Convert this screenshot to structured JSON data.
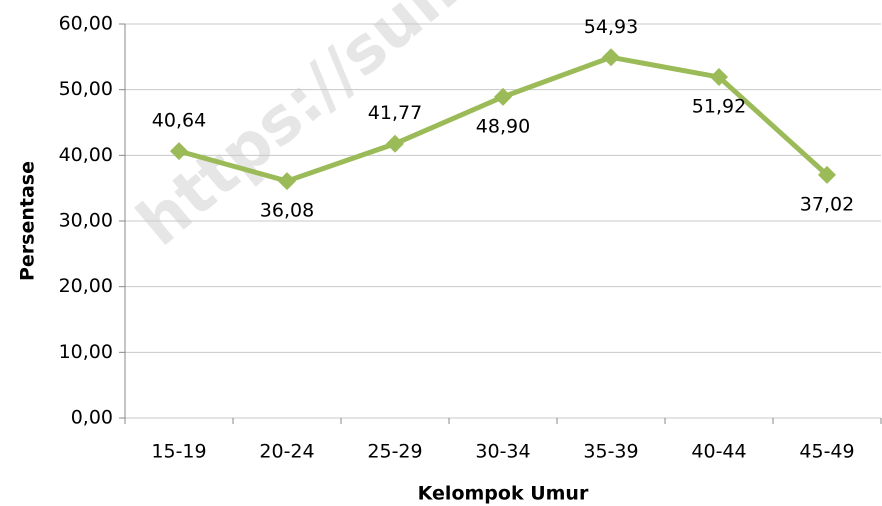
{
  "chart_data": {
    "type": "line",
    "watermark": "https://sumb",
    "x_label": "Kelompok Umur",
    "y_label": "Persentase",
    "categories": [
      "15-19",
      "20-24",
      "25-29",
      "30-34",
      "35-39",
      "40-44",
      "45-49"
    ],
    "series": [
      {
        "name": "Persentase",
        "color": "#9bbb59",
        "values": [
          40.64,
          36.08,
          41.77,
          48.9,
          54.93,
          51.92,
          37.02
        ],
        "value_labels": [
          "40,64",
          "36,08",
          "41,77",
          "48,90",
          "54,93",
          "51,92",
          "37,02"
        ]
      }
    ],
    "ylim": [
      0,
      60
    ],
    "yticks": [
      {
        "value": 0,
        "label": "0,00"
      },
      {
        "value": 10,
        "label": "10,00"
      },
      {
        "value": 20,
        "label": "20,00"
      },
      {
        "value": 30,
        "label": "30,00"
      },
      {
        "value": 40,
        "label": "40,00"
      },
      {
        "value": 50,
        "label": "50,00"
      },
      {
        "value": 60,
        "label": "60,00"
      }
    ],
    "grid": true
  }
}
